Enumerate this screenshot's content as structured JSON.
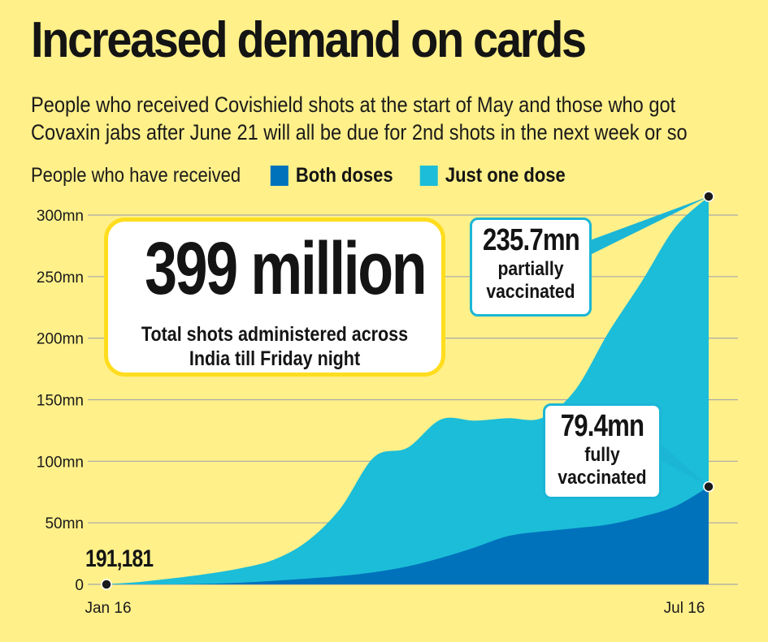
{
  "title": "Increased demand on cards",
  "subtitle_lines": [
    "People who received Covishield shots at the start of May and those who got",
    "Covaxin jabs after June 21 will all be due for 2nd shots in the next week or so"
  ],
  "legend_prefix": "People who have received",
  "colors": {
    "background": "#FFF08A",
    "both_doses": "#0072BC",
    "one_dose": "#1CBDD8",
    "grid": "#A8A8A8",
    "callout_border_yellow": "#FFDD1E",
    "callout_border_cyan": "#1BB6D6",
    "text": "#141414"
  },
  "callouts": {
    "total_big": "399 million",
    "total_sub_lines": [
      "Total shots administered across",
      "India till Friday night"
    ],
    "partial_number": "235.7mn",
    "partial_lines": [
      "partially",
      "vaccinated"
    ],
    "full_number": "79.4mn",
    "full_lines": [
      "fully",
      "vaccinated"
    ],
    "start_value": "191,181"
  },
  "chart_data": {
    "type": "area",
    "stacked": true,
    "x_range": [
      "Jan 16",
      "Jul 16"
    ],
    "x_tick_labels": [
      "Jan 16",
      "Jul 16"
    ],
    "y_ticks": [
      0,
      50,
      100,
      150,
      200,
      250,
      300
    ],
    "y_tick_labels": [
      "0",
      "50mn",
      "100mn",
      "150mn",
      "200mn",
      "250mn",
      "300mn"
    ],
    "ylim": [
      0,
      320
    ],
    "y_unit": "mn",
    "grid": "horizontal",
    "legend_placement": "top-left",
    "x": [
      "Jan 16",
      "Jan 26",
      "Feb 5",
      "Feb 15",
      "Feb 25",
      "Mar 7",
      "Mar 17",
      "Mar 27",
      "Apr 6",
      "Apr 16",
      "Apr 26",
      "May 6",
      "May 16",
      "May 26",
      "Jun 5",
      "Jun 15",
      "Jun 25",
      "Jul 5",
      "Jul 16"
    ],
    "series": [
      {
        "name": "Both doses",
        "color": "#0072BC",
        "values": [
          0,
          0,
          0,
          0.4,
          1.4,
          2.9,
          4.7,
          6.8,
          9.9,
          14.6,
          21.5,
          29.9,
          39.2,
          42.9,
          45.6,
          48.6,
          54.9,
          63.4,
          79.4
        ]
      },
      {
        "name": "Just one dose",
        "color": "#1CBDD8",
        "values": [
          0.19,
          2.0,
          5.0,
          8.1,
          11.6,
          17.1,
          30.3,
          55.2,
          93.5,
          96.4,
          112.5,
          103.1,
          95.8,
          92.1,
          111.9,
          155.9,
          191.1,
          226.6,
          235.7
        ]
      }
    ],
    "point_annotations": [
      {
        "x": "Jan 16",
        "value": 0.19,
        "label": "191,181"
      },
      {
        "x": "Jul 16",
        "series": "Both doses",
        "value": 79.4,
        "label": "79.4mn fully vaccinated"
      },
      {
        "x": "Jul 16",
        "series": "Just one dose",
        "value": 315.1,
        "label": "235.7mn partially vaccinated"
      }
    ]
  }
}
